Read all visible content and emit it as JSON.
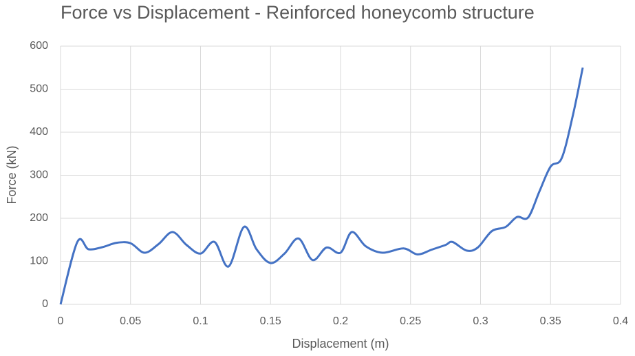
{
  "chart_data": {
    "type": "line",
    "title": "Force vs Displacement - Reinforced honeycomb structure",
    "x_label": "Displacement (m)",
    "y_label": "Force (kN)",
    "x": [
      0,
      0.012,
      0.02,
      0.03,
      0.04,
      0.05,
      0.06,
      0.07,
      0.08,
      0.09,
      0.1,
      0.11,
      0.12,
      0.131,
      0.14,
      0.15,
      0.16,
      0.17,
      0.18,
      0.19,
      0.2,
      0.208,
      0.218,
      0.23,
      0.245,
      0.255,
      0.265,
      0.275,
      0.28,
      0.29,
      0.298,
      0.308,
      0.318,
      0.326,
      0.334,
      0.342,
      0.35,
      0.358,
      0.366,
      0.373
    ],
    "series": [
      {
        "color": "#4472c4",
        "values": [
          0,
          145,
          128,
          133,
          143,
          142,
          120,
          140,
          168,
          138,
          118,
          145,
          88,
          180,
          128,
          96,
          118,
          153,
          103,
          132,
          120,
          168,
          135,
          120,
          130,
          116,
          127,
          138,
          145,
          125,
          132,
          170,
          180,
          203,
          202,
          262,
          320,
          340,
          440,
          550
        ]
      }
    ],
    "xlim": [
      0,
      0.4
    ],
    "xticks": [
      0,
      0.05,
      0.1,
      0.15,
      0.2,
      0.25,
      0.3,
      0.35,
      0.4
    ],
    "ylim": [
      0,
      600
    ],
    "yticks": [
      0,
      100,
      200,
      300,
      400,
      500,
      600
    ],
    "grid": true
  }
}
